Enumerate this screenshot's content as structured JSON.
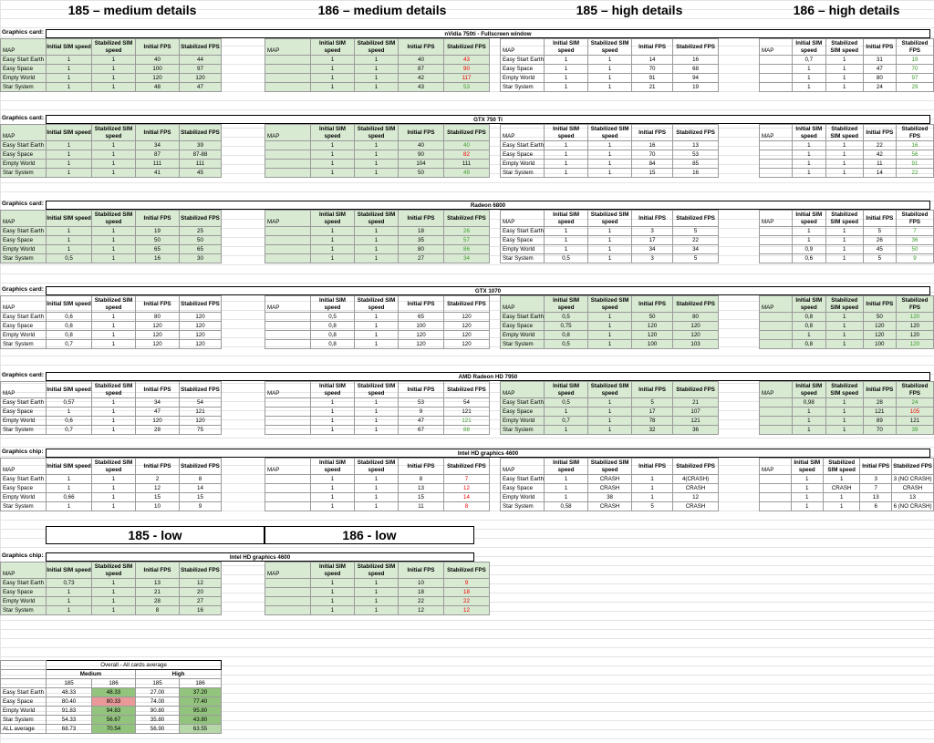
{
  "headers": [
    "185 – medium details",
    "186 – medium details",
    "185 – high details",
    "186 – high details"
  ],
  "col_headers": {
    "map": "MAP",
    "init_sim": "Initial SIM speed",
    "stab_sim": "Stabilized SIM speed",
    "init_fps": "Initial FPS",
    "stab_fps": "Stabilized FPS"
  },
  "sections": [
    {
      "label": "Graphics card:",
      "card": "nVidia 750ti - Fullscreen window",
      "highlight": "medium",
      "blocks": [
        [
          [
            "Easy Start Earth",
            "1",
            "1",
            "40",
            "44"
          ],
          [
            "Easy Space",
            "1",
            "1",
            "100",
            "97"
          ],
          [
            "Empty World",
            "1",
            "1",
            "120",
            "120"
          ],
          [
            "Star System",
            "1",
            "1",
            "48",
            "47"
          ]
        ],
        [
          [
            "",
            "1",
            "1",
            "40",
            "43"
          ],
          [
            "",
            "1",
            "1",
            "87",
            "90"
          ],
          [
            "",
            "1",
            "1",
            "42",
            "117"
          ],
          [
            "",
            "1",
            "1",
            "43",
            "53"
          ]
        ],
        [
          [
            "Easy Start Earth",
            "1",
            "1",
            "14",
            "16"
          ],
          [
            "Easy Space",
            "1",
            "1",
            "70",
            "68"
          ],
          [
            "Empty World",
            "1",
            "1",
            "91",
            "94"
          ],
          [
            "Star System",
            "1",
            "1",
            "21",
            "19"
          ]
        ],
        [
          [
            "",
            "0,7",
            "1",
            "31",
            "19"
          ],
          [
            "",
            "1",
            "1",
            "47",
            "70"
          ],
          [
            "",
            "1",
            "1",
            "80",
            "97"
          ],
          [
            "",
            "1",
            "1",
            "24",
            "29"
          ]
        ]
      ],
      "colors": [
        [
          null,
          null,
          null,
          null
        ],
        [
          "red",
          "red",
          "red",
          "grn"
        ],
        [
          null,
          null,
          null,
          null
        ],
        [
          "grn",
          "grn",
          "grn",
          "grn"
        ]
      ]
    },
    {
      "label": "Graphics card:",
      "card": "GTX 750 Ti",
      "highlight": "medium",
      "blocks": [
        [
          [
            "Easy Start Earth",
            "1",
            "1",
            "34",
            "39"
          ],
          [
            "Easy Space",
            "1",
            "1",
            "87",
            "87-88"
          ],
          [
            "Empty World",
            "1",
            "1",
            "111",
            "111"
          ],
          [
            "Star System",
            "1",
            "1",
            "41",
            "45"
          ]
        ],
        [
          [
            "",
            "1",
            "1",
            "40",
            "40"
          ],
          [
            "",
            "1",
            "1",
            "90",
            "82"
          ],
          [
            "",
            "1",
            "1",
            "104",
            "111"
          ],
          [
            "",
            "1",
            "1",
            "50",
            "49"
          ]
        ],
        [
          [
            "Easy Start Earth",
            "1",
            "1",
            "16",
            "13"
          ],
          [
            "Easy Space",
            "1",
            "1",
            "70",
            "53"
          ],
          [
            "Empty World",
            "1",
            "1",
            "84",
            "85"
          ],
          [
            "Star System",
            "1",
            "1",
            "15",
            "16"
          ]
        ],
        [
          [
            "",
            "1",
            "1",
            "22",
            "16"
          ],
          [
            "",
            "1",
            "1",
            "42",
            "56"
          ],
          [
            "",
            "1",
            "1",
            "11",
            "91"
          ],
          [
            "",
            "1",
            "1",
            "14",
            "22"
          ]
        ]
      ],
      "colors": [
        [
          null,
          null,
          null,
          null
        ],
        [
          "grn",
          "red",
          null,
          "grn"
        ],
        [
          null,
          null,
          null,
          null
        ],
        [
          "grn",
          "grn",
          "grn",
          "grn"
        ]
      ]
    },
    {
      "label": "Graphics card:",
      "card": "Radeon 6800",
      "highlight": "medium",
      "blocks": [
        [
          [
            "Easy Start Earth",
            "1",
            "1",
            "19",
            "25"
          ],
          [
            "Easy Space",
            "1",
            "1",
            "50",
            "50"
          ],
          [
            "Empty World",
            "1",
            "1",
            "65",
            "65"
          ],
          [
            "Star System",
            "0,5",
            "1",
            "16",
            "30"
          ]
        ],
        [
          [
            "",
            "1",
            "1",
            "18",
            "26"
          ],
          [
            "",
            "1",
            "1",
            "35",
            "57"
          ],
          [
            "",
            "1",
            "1",
            "80",
            "86"
          ],
          [
            "",
            "1",
            "1",
            "27",
            "34"
          ]
        ],
        [
          [
            "Easy Start Earth",
            "1",
            "1",
            "3",
            "5"
          ],
          [
            "Easy Space",
            "1",
            "1",
            "17",
            "22"
          ],
          [
            "Empty World",
            "1",
            "1",
            "34",
            "34"
          ],
          [
            "Star System",
            "0,5",
            "1",
            "3",
            "5"
          ]
        ],
        [
          [
            "",
            "1",
            "1",
            "5",
            "7"
          ],
          [
            "",
            "1",
            "1",
            "26",
            "36"
          ],
          [
            "",
            "0,9",
            "1",
            "45",
            "50"
          ],
          [
            "",
            "0,6",
            "1",
            "5",
            "9"
          ]
        ]
      ],
      "colors": [
        [
          null,
          null,
          null,
          null
        ],
        [
          "grn",
          "grn",
          "grn",
          "grn"
        ],
        [
          null,
          null,
          null,
          null
        ],
        [
          "grn",
          "grn",
          "grn",
          "grn"
        ]
      ]
    },
    {
      "label": "Graphics card:",
      "card": "GTX 1070",
      "highlight": "high",
      "blocks": [
        [
          [
            "Easy Start Earth",
            "0,6",
            "1",
            "80",
            "120"
          ],
          [
            "Easy Space",
            "0,8",
            "1",
            "120",
            "120"
          ],
          [
            "Empty World",
            "0,8",
            "1",
            "120",
            "120"
          ],
          [
            "Star System",
            "0,7",
            "1",
            "120",
            "120"
          ]
        ],
        [
          [
            "",
            "0,5",
            "1",
            "65",
            "120"
          ],
          [
            "",
            "0,8",
            "1",
            "100",
            "120"
          ],
          [
            "",
            "0,8",
            "1",
            "120",
            "120"
          ],
          [
            "",
            "0,8",
            "1",
            "120",
            "120"
          ]
        ],
        [
          [
            "Easy Start Earth",
            "0,5",
            "1",
            "50",
            "80"
          ],
          [
            "Easy Space",
            "0,75",
            "1",
            "120",
            "120"
          ],
          [
            "Empty World",
            "0,8",
            "1",
            "120",
            "120"
          ],
          [
            "Star System",
            "0,5",
            "1",
            "100",
            "103"
          ]
        ],
        [
          [
            "",
            "0,8",
            "1",
            "50",
            "120"
          ],
          [
            "",
            "0,8",
            "1",
            "120",
            "120"
          ],
          [
            "",
            "1",
            "1",
            "120",
            "120"
          ],
          [
            "",
            "0,8",
            "1",
            "100",
            "120"
          ]
        ]
      ],
      "colors": [
        [
          null,
          null,
          null,
          null
        ],
        [
          null,
          null,
          null,
          null
        ],
        [
          null,
          null,
          null,
          null
        ],
        [
          "grn",
          null,
          null,
          "grn"
        ]
      ]
    },
    {
      "label": "Graphics card:",
      "card": "AMD Radeon HD 7950",
      "highlight": "high",
      "blocks": [
        [
          [
            "Easy Start Earth",
            "0,57",
            "1",
            "34",
            "54"
          ],
          [
            "Easy Space",
            "1",
            "1",
            "47",
            "121"
          ],
          [
            "Empty World",
            "0,6",
            "1",
            "120",
            "120"
          ],
          [
            "Star System",
            "0,7",
            "1",
            "28",
            "75"
          ]
        ],
        [
          [
            "",
            "1",
            "1",
            "53",
            "54"
          ],
          [
            "",
            "1",
            "1",
            "9",
            "121"
          ],
          [
            "",
            "1",
            "1",
            "47",
            "121"
          ],
          [
            "",
            "1",
            "1",
            "67",
            "88"
          ]
        ],
        [
          [
            "Easy Start Earth",
            "0,5",
            "1",
            "5",
            "21"
          ],
          [
            "Easy Space",
            "1",
            "1",
            "17",
            "107"
          ],
          [
            "Empty World",
            "0,7",
            "1",
            "78",
            "121"
          ],
          [
            "Star System",
            "1",
            "1",
            "32",
            "36"
          ]
        ],
        [
          [
            "",
            "0,98",
            "1",
            "28",
            "24"
          ],
          [
            "",
            "1",
            "1",
            "121",
            "105"
          ],
          [
            "",
            "1",
            "1",
            "89",
            "121"
          ],
          [
            "",
            "1",
            "1",
            "70",
            "39"
          ]
        ]
      ],
      "colors": [
        [
          null,
          null,
          null,
          null
        ],
        [
          null,
          null,
          "grn",
          "grn"
        ],
        [
          null,
          null,
          null,
          null
        ],
        [
          "grn",
          "red",
          null,
          "grn"
        ]
      ]
    },
    {
      "label": "Graphics chip:",
      "card": "Intel HD graphics 4600",
      "highlight": "none",
      "blocks": [
        [
          [
            "Easy Start Earth",
            "1",
            "1",
            "2",
            "8"
          ],
          [
            "Easy Space",
            "1",
            "1",
            "12",
            "14"
          ],
          [
            "Empty World",
            "0,66",
            "1",
            "15",
            "15"
          ],
          [
            "Star System",
            "1",
            "1",
            "10",
            "9"
          ]
        ],
        [
          [
            "",
            "1",
            "1",
            "8",
            "7"
          ],
          [
            "",
            "1",
            "1",
            "13",
            "12"
          ],
          [
            "",
            "1",
            "1",
            "15",
            "14"
          ],
          [
            "",
            "1",
            "1",
            "11",
            "8"
          ]
        ],
        [
          [
            "Easy Start Earth",
            "1",
            "CRASH",
            "1",
            "4(CRASH)"
          ],
          [
            "Easy Space",
            "1",
            "CRASH",
            "1",
            "CRASH"
          ],
          [
            "Empty World",
            "1",
            "38",
            "1",
            "12"
          ],
          [
            "Star System",
            "0,58",
            "CRASH",
            "5",
            "CRASH"
          ]
        ],
        [
          [
            "",
            "1",
            "1",
            "3",
            "3 (NO CRASH)"
          ],
          [
            "",
            "1",
            "CRASH",
            "7",
            "CRASH"
          ],
          [
            "",
            "1",
            "1",
            "13",
            "13"
          ],
          [
            "",
            "1",
            "1",
            "6",
            "6 (NO CRASH)"
          ]
        ]
      ],
      "colors": [
        [
          null,
          null,
          null,
          null
        ],
        [
          "red",
          "red",
          "red",
          "red"
        ],
        [
          null,
          null,
          null,
          null
        ],
        [
          null,
          null,
          null,
          null
        ]
      ]
    }
  ],
  "low_headers": [
    "185 - low",
    "186 - low"
  ],
  "low_section": {
    "label": "Graphics chip:",
    "card": "Intel HD graphics 4600",
    "blocks": [
      [
        [
          "Easy Start Earth",
          "0,73",
          "1",
          "13",
          "12"
        ],
        [
          "Easy Space",
          "1",
          "1",
          "21",
          "20"
        ],
        [
          "Empty World",
          "1",
          "1",
          "28",
          "27"
        ],
        [
          "Star System",
          "1",
          "1",
          "8",
          "16"
        ]
      ],
      [
        [
          "",
          "1",
          "1",
          "10",
          "9"
        ],
        [
          "",
          "1",
          "1",
          "18",
          "18"
        ],
        [
          "",
          "1",
          "1",
          "22",
          "22"
        ],
        [
          "",
          "1",
          "1",
          "12",
          "12"
        ]
      ]
    ],
    "colors": [
      [
        null,
        null,
        null,
        null
      ],
      [
        "red",
        "red",
        "red",
        "red"
      ]
    ]
  },
  "overall": {
    "title": "Overall - All cards average",
    "groups": [
      "Medium",
      "High"
    ],
    "versions": [
      "185",
      "186",
      "185",
      "186"
    ],
    "rows": [
      {
        "map": "Easy Start Earth",
        "vals": [
          "48.33",
          "48.33",
          "27.00",
          "37.20"
        ]
      },
      {
        "map": "Easy Space",
        "vals": [
          "80.40",
          "80.33",
          "74.00",
          "77.40"
        ]
      },
      {
        "map": "Empty World",
        "vals": [
          "91.83",
          "94.83",
          "90.80",
          "95.80"
        ]
      },
      {
        "map": "Star System",
        "vals": [
          "54.33",
          "56.67",
          "35.80",
          "43.80"
        ]
      },
      {
        "map": "ALL average",
        "vals": [
          "68.73",
          "70.54",
          "56.90",
          "63.55"
        ]
      }
    ],
    "cellcolors": [
      [
        null,
        "cg",
        null,
        "cg"
      ],
      [
        null,
        "cr",
        null,
        "cg"
      ],
      [
        null,
        "cg",
        null,
        "cg"
      ],
      [
        null,
        "cg",
        null,
        "cg"
      ],
      [
        null,
        "cg",
        null,
        "cl"
      ]
    ]
  }
}
